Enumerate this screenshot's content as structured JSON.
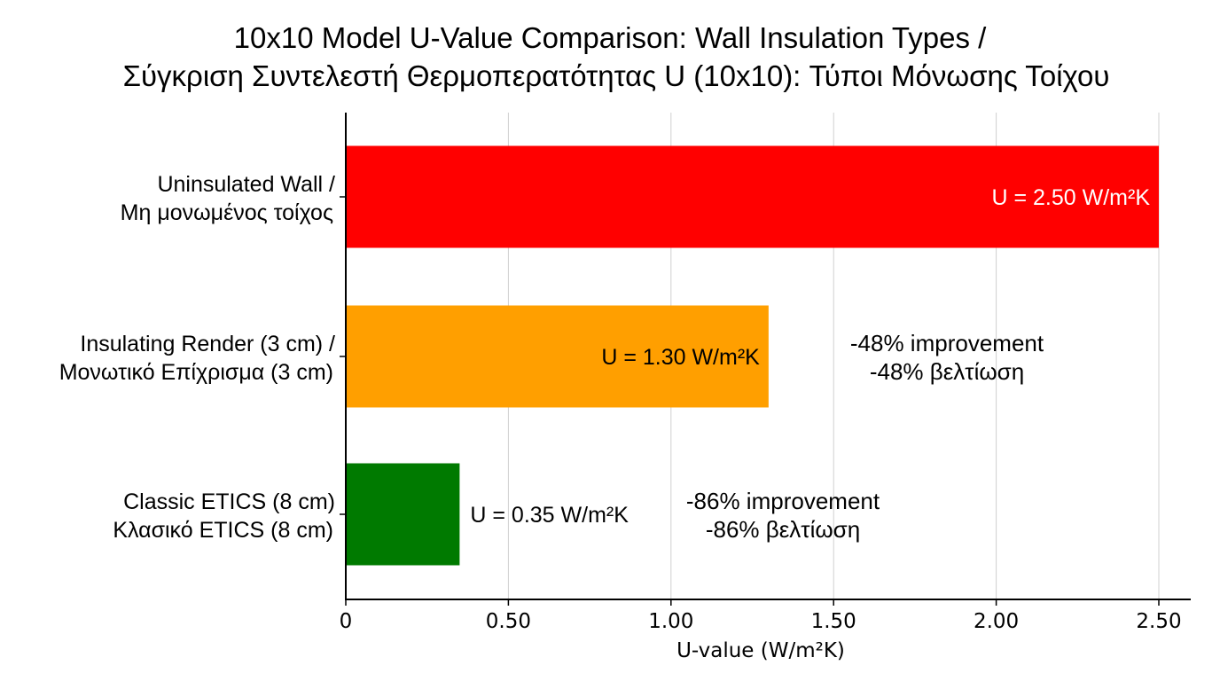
{
  "chart_data": {
    "type": "bar",
    "orientation": "horizontal",
    "title": "10x10 Model U-Value Comparison: Wall Insulation Types /",
    "subtitle": "Σύγκριση Συντελεστή Θερμοπερατότητας U (10x10): Τύποι Μόνωσης Τοίχου",
    "xlabel": "U-value (W/m²K)",
    "ylabel": "",
    "xlim": [
      0,
      2.6
    ],
    "xticks": [
      0,
      0.5,
      1.0,
      1.5,
      2.0,
      2.5
    ],
    "xtick_labels": [
      "0",
      "0.50",
      "1.00",
      "1.50",
      "2.00",
      "2.50"
    ],
    "grid": "vertical",
    "categories": [
      [
        "Uninsulated Wall /",
        "Μη μονωμένος τοίχος"
      ],
      [
        "Insulating Render (3 cm) /",
        "Μονωτικό Επίχρισμα (3 cm)"
      ],
      [
        "Classic ETICS (8 cm)",
        "Κλασικό ETICS (8 cm)"
      ]
    ],
    "values": [
      2.5,
      1.3,
      0.35
    ],
    "colors": [
      "#ff0000",
      "#ff9f00",
      "#007a00"
    ],
    "value_labels": [
      "U = 2.50 W/m²K",
      "U = 1.30 W/m²K",
      "U = 0.35 W/m²K"
    ],
    "value_label_colors": [
      "#ffffff",
      "#000000",
      "#000000"
    ],
    "annotations": [
      null,
      [
        "-48% improvement",
        "-48% βελτίωση"
      ],
      [
        "-86% improvement",
        "-86% βελτίωση"
      ]
    ]
  }
}
